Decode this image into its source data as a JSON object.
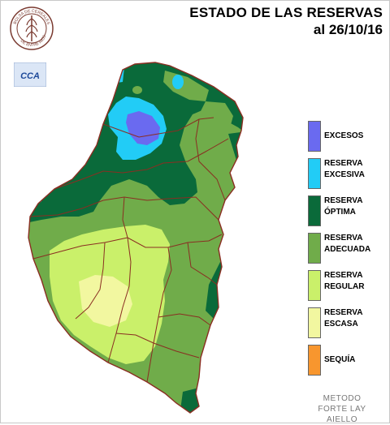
{
  "title": {
    "line1": "ESTADO DE LAS RESERVAS",
    "line2": "al 26/10/16"
  },
  "logos": {
    "seal_text": "BOLSA DE CEREALES DE ENTRE RIOS",
    "cca_text": "CCA"
  },
  "colors": {
    "excesos": "#6a6af0",
    "excesiva": "#22ccf6",
    "optima": "#0a6a3a",
    "adecuada": "#70ac4a",
    "regular": "#caf06a",
    "escasa": "#f2f7a0",
    "sequia": "#f8962e",
    "borders": "#8a2e22"
  },
  "legend": [
    {
      "key": "excesos",
      "label": "EXCESOS",
      "icon": "swatch-excesos"
    },
    {
      "key": "excesiva",
      "label": "RESERVA\nEXCESIVA",
      "icon": "swatch-excesiva"
    },
    {
      "key": "optima",
      "label": "RESERVA\nÓPTIMA",
      "icon": "swatch-optima"
    },
    {
      "key": "adecuada",
      "label": "RESERVA\nADECUADA",
      "icon": "swatch-adecuada"
    },
    {
      "key": "regular",
      "label": "RESERVA\nREGULAR",
      "icon": "swatch-regular"
    },
    {
      "key": "escasa",
      "label": "RESERVA\nESCASA",
      "icon": "swatch-escasa"
    },
    {
      "key": "sequia",
      "label": "SEQUÍA",
      "icon": "swatch-sequia"
    }
  ],
  "method": "METODO\nFORTE LAY\nAIELLO"
}
